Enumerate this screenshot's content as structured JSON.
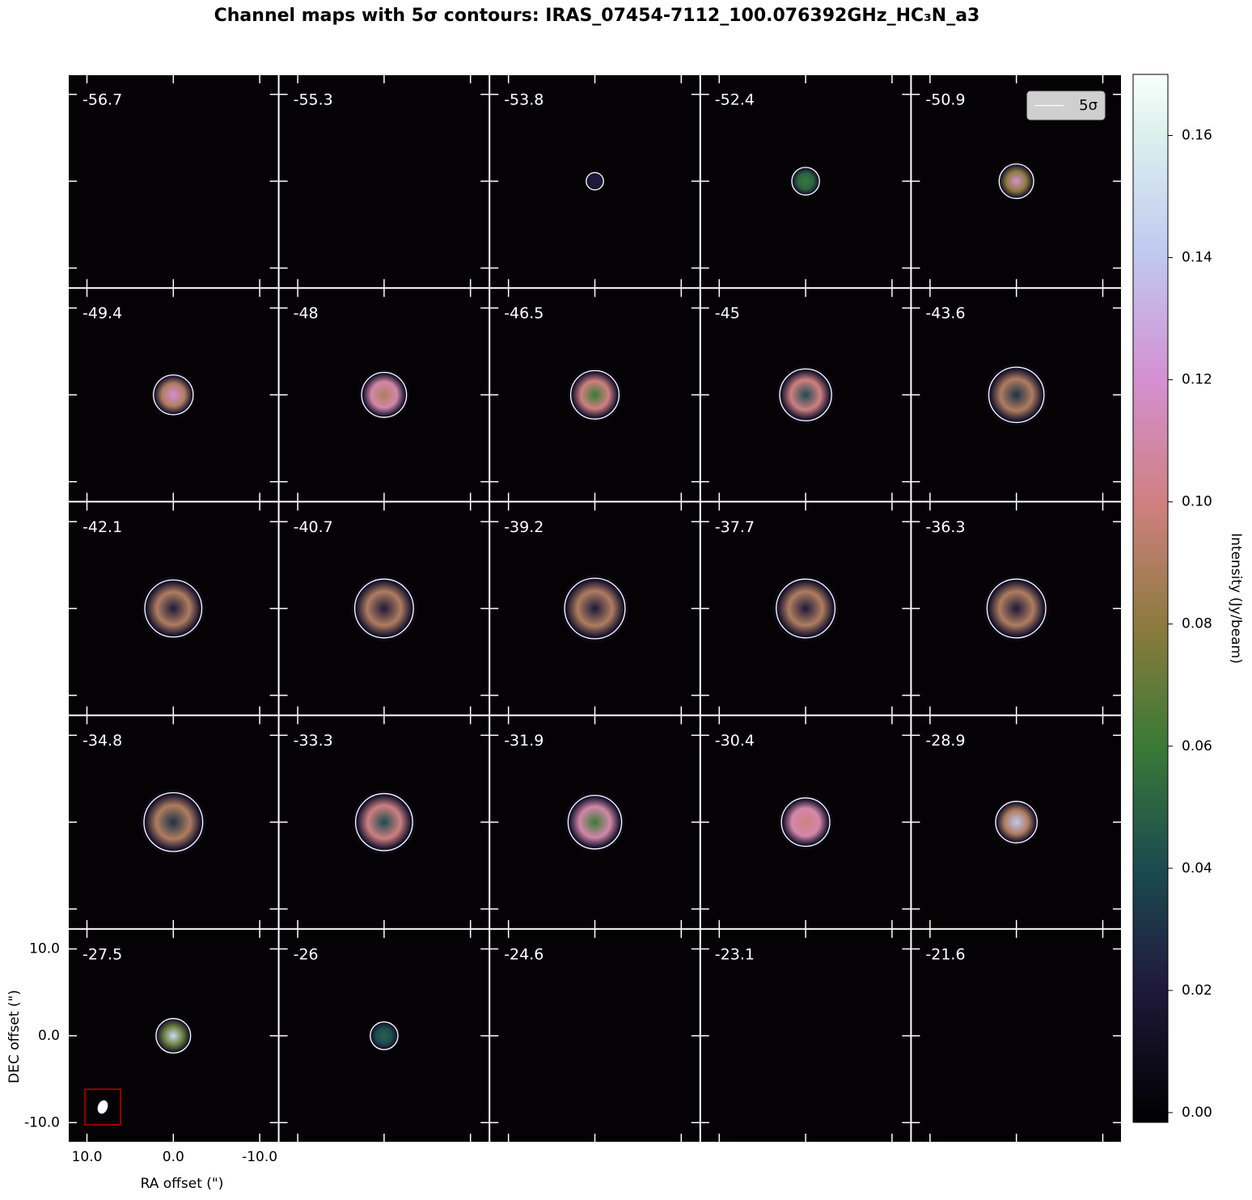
{
  "chart_data": {
    "type": "channel_maps",
    "title": "Channel maps with 5σ contours: IRAS_07454-7112_100.076392GHz_HC₃N_a3",
    "xlabel": "RA offset (\")",
    "ylabel": "DEC offset (\")",
    "xlim": [
      12.2,
      -12.2
    ],
    "ylim": [
      -12.3,
      12.3
    ],
    "xticks": [
      {
        "value": 10,
        "label": "10.0"
      },
      {
        "value": 0,
        "label": "0.0"
      },
      {
        "value": -10,
        "label": "-10.0"
      }
    ],
    "yticks": [
      {
        "value": -10,
        "label": "-10.0"
      },
      {
        "value": 0,
        "label": "0.0"
      },
      {
        "value": 10,
        "label": "10.0"
      }
    ],
    "colormap": "cubehelix",
    "contour_color": "#ffffff",
    "legend_label": "5σ",
    "colorbar": {
      "label": "Intensity (Jy/beam)",
      "lim": [
        -0.0016,
        0.17
      ],
      "ticks": [
        {
          "value": 0,
          "label": "0.00"
        },
        {
          "value": 0.02,
          "label": "0.02"
        },
        {
          "value": 0.04,
          "label": "0.04"
        },
        {
          "value": 0.06,
          "label": "0.06"
        },
        {
          "value": 0.08,
          "label": "0.08"
        },
        {
          "value": 0.1,
          "label": "0.10"
        },
        {
          "value": 0.12,
          "label": "0.12"
        },
        {
          "value": 0.14,
          "label": "0.14"
        },
        {
          "value": 0.16,
          "label": "0.16"
        }
      ]
    },
    "channels": [
      {
        "velocity": -56.7
      },
      {
        "velocity": -55.3
      },
      {
        "velocity": -53.8,
        "contour_radius": 1.0,
        "center_intensity": 0.02,
        "ring_intensity": 0.02
      },
      {
        "velocity": -52.4,
        "contour_radius": 1.6,
        "center_intensity": 0.06,
        "ring_intensity": 0.05
      },
      {
        "velocity": -50.9,
        "contour_radius": 2.0,
        "center_intensity": 0.12,
        "ring_intensity": 0.08
      },
      {
        "velocity": -49.4,
        "contour_radius": 2.3,
        "center_intensity": 0.12,
        "ring_intensity": 0.09
      },
      {
        "velocity": -48.0,
        "contour_radius": 2.6,
        "center_intensity": 0.09,
        "ring_intensity": 0.11
      },
      {
        "velocity": -46.5,
        "contour_radius": 2.8,
        "center_intensity": 0.06,
        "ring_intensity": 0.1
      },
      {
        "velocity": -45.0,
        "contour_radius": 3.0,
        "center_intensity": 0.04,
        "ring_intensity": 0.1
      },
      {
        "velocity": -43.6,
        "contour_radius": 3.2,
        "center_intensity": 0.03,
        "ring_intensity": 0.09
      },
      {
        "velocity": -42.1,
        "contour_radius": 3.3,
        "center_intensity": 0.02,
        "ring_intensity": 0.09
      },
      {
        "velocity": -40.7,
        "contour_radius": 3.4,
        "center_intensity": 0.02,
        "ring_intensity": 0.09
      },
      {
        "velocity": -39.2,
        "contour_radius": 3.5,
        "center_intensity": 0.02,
        "ring_intensity": 0.09
      },
      {
        "velocity": -37.7,
        "contour_radius": 3.4,
        "center_intensity": 0.02,
        "ring_intensity": 0.09
      },
      {
        "velocity": -36.3,
        "contour_radius": 3.4,
        "center_intensity": 0.02,
        "ring_intensity": 0.09
      },
      {
        "velocity": -34.8,
        "contour_radius": 3.4,
        "center_intensity": 0.03,
        "ring_intensity": 0.09
      },
      {
        "velocity": -33.3,
        "contour_radius": 3.3,
        "center_intensity": 0.04,
        "ring_intensity": 0.1
      },
      {
        "velocity": -31.9,
        "contour_radius": 3.1,
        "center_intensity": 0.06,
        "ring_intensity": 0.11
      },
      {
        "velocity": -30.4,
        "contour_radius": 2.8,
        "center_intensity": 0.1,
        "ring_intensity": 0.11
      },
      {
        "velocity": -28.9,
        "contour_radius": 2.4,
        "center_intensity": 0.14,
        "ring_intensity": 0.09
      },
      {
        "velocity": -27.5,
        "contour_radius": 2.0,
        "center_intensity": 0.15,
        "ring_intensity": 0.07
      },
      {
        "velocity": -26.0,
        "contour_radius": 1.6,
        "center_intensity": 0.05,
        "ring_intensity": 0.04
      },
      {
        "velocity": -24.6
      },
      {
        "velocity": -23.1
      },
      {
        "velocity": -21.6
      }
    ]
  }
}
